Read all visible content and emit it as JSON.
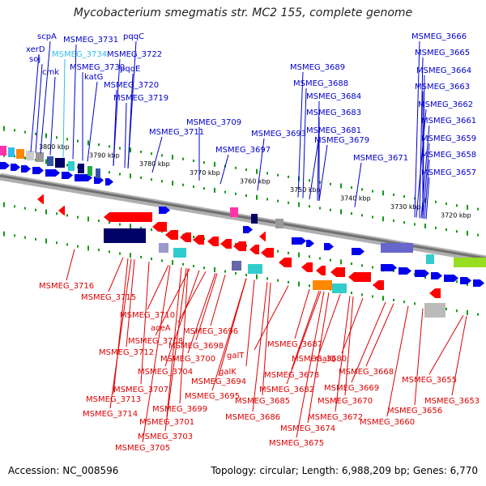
{
  "title": "Mycobacterium smegmatis str. MC2 155, complete genome",
  "accession": "Accession: NC_008596",
  "summary": "Topology: circular; Length: 6,988,209 bp; Genes: 6,770",
  "colors": {
    "top_label": "#0000cc",
    "bottom_label": "#dd0000",
    "highlight_label": "#33bbee",
    "axis": "#888888",
    "tick": "#119911"
  },
  "axis_ticks": [
    "3800 kbp",
    "3790 kbp",
    "3780 kbp",
    "3770 kbp",
    "3760 kbp",
    "3750 kbp",
    "3740 kbp",
    "3730 kbp",
    "3720 kbp"
  ],
  "top_labels": [
    "scpA",
    "xerD",
    "soj",
    "cmk",
    "MSMEG_3731",
    "MSMEG_3734",
    "MSMEG_3730",
    "katG",
    "pqqC",
    "MSMEG_3722",
    "pqqE",
    "MSMEG_3720",
    "MSMEG_3719",
    "MSMEG_3709",
    "MSMEG_3711",
    "MSMEG_3697",
    "MSMEG_3693",
    "MSMEG_3689",
    "MSMEG_3688",
    "MSMEG_3684",
    "MSMEG_3683",
    "MSMEG_3681",
    "MSMEG_3679",
    "MSMEG_3671",
    "MSMEG_3666",
    "MSMEG_3665",
    "MSMEG_3664",
    "MSMEG_3663",
    "MSMEG_3662",
    "MSMEG_3661",
    "MSMEG_3659",
    "MSMEG_3658",
    "MSMEG_3657"
  ],
  "bottom_labels": [
    "MSMEG_3716",
    "MSMEG_3715",
    "MSMEG_3710",
    "aceA",
    "MSMEG_3708",
    "MSMEG_3712",
    "MSMEG_3696",
    "MSMEG_3698",
    "MSMEG_3700",
    "MSMEG_3704",
    "MSMEG_3707",
    "MSMEG_3713",
    "MSMEG_3714",
    "MSMEG_3694",
    "MSMEG_3695",
    "MSMEG_3699",
    "MSMEG_3701",
    "MSMEG_3703",
    "MSMEG_3705",
    "galT",
    "galK",
    "MSMEG_3687",
    "MSMEG_3680",
    "MSMEG_3678",
    "MSMEG_3682",
    "MSMEG_3685",
    "MSMEG_3686",
    "malQ",
    "MSMEG_3668",
    "MSMEG_3669",
    "MSMEG_3670",
    "MSMEG_3672",
    "MSMEG_3674",
    "MSMEG_3675",
    "MSMEG_3655",
    "MSMEG_3656",
    "MSMEG_3653",
    "MSMEG_3660"
  ]
}
